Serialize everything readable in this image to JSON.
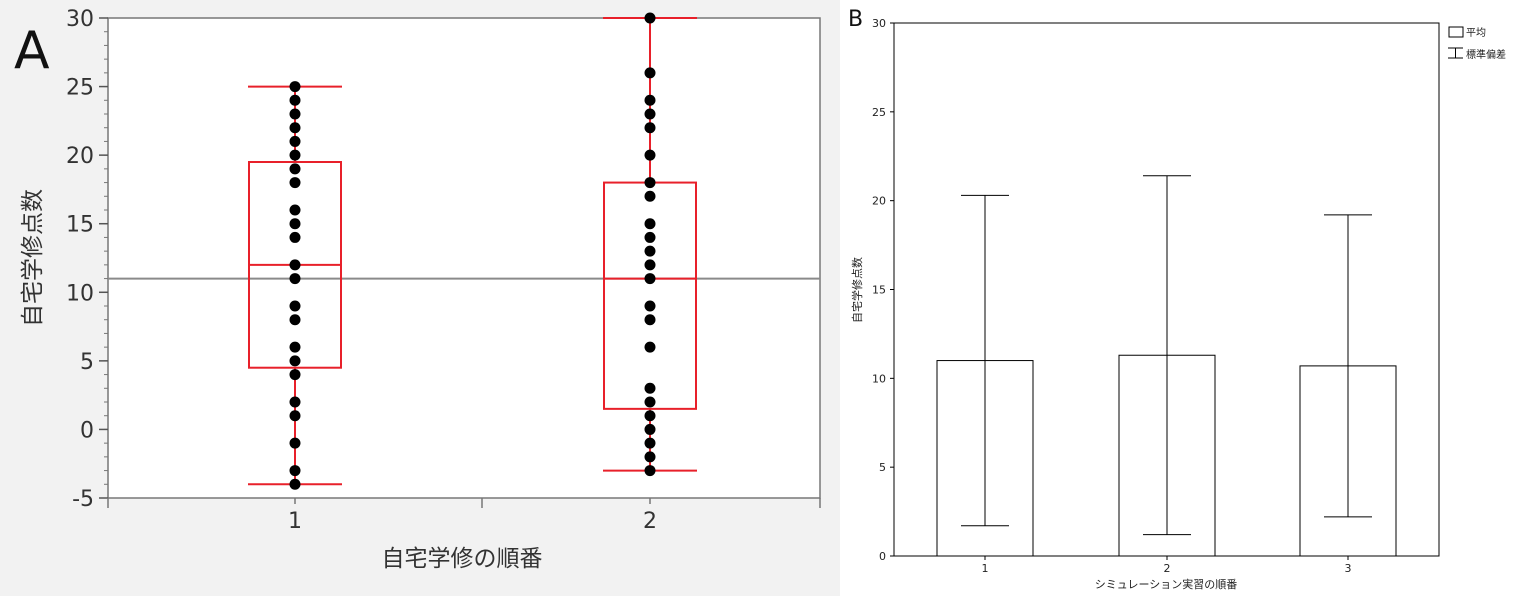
{
  "chart_data": [
    {
      "type": "box",
      "panel_label": "A",
      "xlabel": "自宅学修の順番",
      "ylabel": "自宅学修点数",
      "ylim": [
        -5,
        30
      ],
      "yticks": [
        -5,
        0,
        5,
        10,
        15,
        20,
        25,
        30
      ],
      "categories": [
        "1",
        "2"
      ],
      "reference_line": 11,
      "grid": false,
      "boxes": [
        {
          "category": "1",
          "whisker_low": -4,
          "q1": 4.5,
          "median": 12,
          "q3": 19.5,
          "whisker_high": 25
        },
        {
          "category": "2",
          "whisker_low": -3,
          "q1": 1.5,
          "median": 11,
          "q3": 18,
          "whisker_high": 30
        }
      ],
      "points": [
        {
          "category": "1",
          "values": [
            25,
            24,
            23,
            22,
            21,
            20,
            19,
            18,
            16,
            15,
            14,
            12,
            11,
            9,
            8,
            6,
            5,
            4,
            2,
            1,
            -1,
            -3,
            -4
          ]
        },
        {
          "category": "2",
          "values": [
            30,
            26,
            24,
            23,
            22,
            20,
            18,
            17,
            15,
            14,
            13,
            12,
            11,
            9,
            8,
            6,
            3,
            2,
            1,
            0,
            -1,
            -2,
            -3
          ]
        }
      ]
    },
    {
      "type": "bar",
      "panel_label": "B",
      "xlabel": "シミュレーション実習の順番",
      "ylabel": "自宅学修点数",
      "ylim": [
        0,
        30
      ],
      "yticks": [
        0,
        5,
        10,
        15,
        20,
        25,
        30
      ],
      "categories": [
        "1",
        "2",
        "3"
      ],
      "grid": false,
      "legend_position": "top-right",
      "legend": [
        "平均",
        "標準偏差"
      ],
      "series": [
        {
          "name": "平均",
          "values": [
            11.0,
            11.3,
            10.7
          ]
        },
        {
          "name": "標準偏差",
          "values": [
            9.3,
            10.1,
            8.5
          ]
        }
      ]
    }
  ],
  "colors": {
    "box": "#e8202a",
    "points": "#000000",
    "reference_line": "#8a8a8a",
    "panel_a_background": "#f2f2f2",
    "bar_fill": "#ffffff",
    "bar_stroke": "#000000"
  }
}
